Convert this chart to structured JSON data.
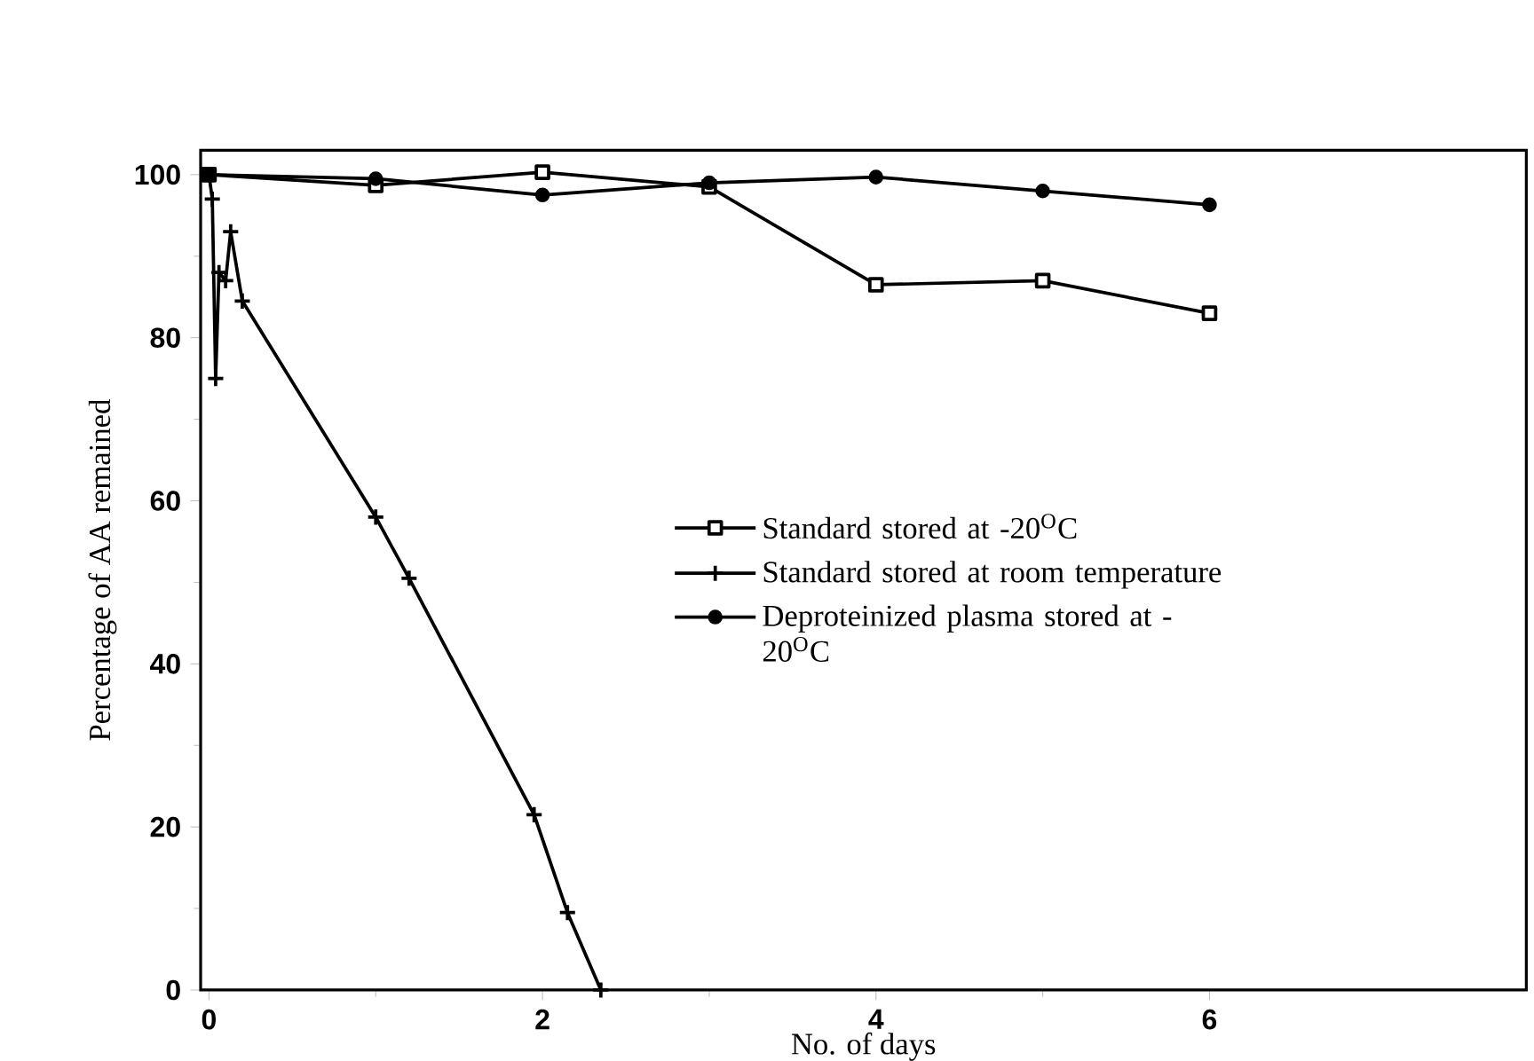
{
  "chart_data": {
    "type": "line",
    "xlabel": "No. of days",
    "ylabel": "Percentage of AA remained",
    "xlim": [
      -0.05,
      7.9
    ],
    "ylim": [
      0,
      103
    ],
    "xticks": [
      0,
      2,
      4,
      6
    ],
    "yticks": [
      0,
      20,
      40,
      60,
      80,
      100
    ],
    "legend": "center",
    "line_style": "solid",
    "series": [
      {
        "name": "Standard stored at -20$^{O}$C",
        "color": "#000000",
        "marker": "square",
        "x": [
          0,
          1,
          2,
          3,
          4,
          5,
          6
        ],
        "values": [
          100,
          98.7,
          100.3,
          98.5,
          86.5,
          87,
          83
        ]
      },
      {
        "name": "Standard stored at room temperature",
        "color": "#000000",
        "marker": "cross",
        "x": [
          0,
          0.02,
          0.04,
          0.06,
          0.1,
          0.13,
          0.2,
          1,
          1.2,
          1.95,
          2.15,
          2.35
        ],
        "values": [
          100,
          97,
          75,
          88,
          87,
          93,
          84.5,
          58,
          50.5,
          21.5,
          9.5,
          0
        ]
      },
      {
        "name": "Deproteinized plasma stored at -20$^{O}$C",
        "color": "#000000",
        "marker": "circle",
        "x": [
          0,
          1,
          2,
          3,
          4,
          5,
          6
        ],
        "values": [
          100,
          99.5,
          97.5,
          99,
          99.7,
          98,
          96.3
        ]
      }
    ]
  }
}
